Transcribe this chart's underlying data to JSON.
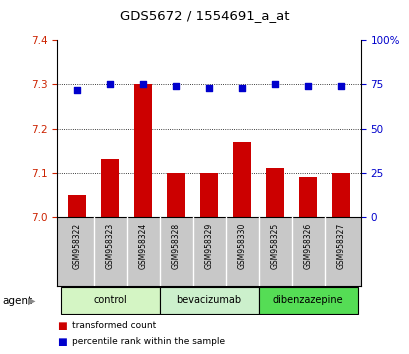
{
  "title": "GDS5672 / 1554691_a_at",
  "samples": [
    "GSM958322",
    "GSM958323",
    "GSM958324",
    "GSM958328",
    "GSM958329",
    "GSM958330",
    "GSM958325",
    "GSM958326",
    "GSM958327"
  ],
  "transformed_count": [
    7.05,
    7.13,
    7.3,
    7.1,
    7.1,
    7.17,
    7.11,
    7.09,
    7.1
  ],
  "percentile_rank": [
    72,
    75,
    75,
    74,
    73,
    73,
    75,
    74,
    74
  ],
  "ylim_left": [
    7.0,
    7.4
  ],
  "ylim_right": [
    0,
    100
  ],
  "yticks_left": [
    7.0,
    7.1,
    7.2,
    7.3,
    7.4
  ],
  "yticks_right": [
    0,
    25,
    50,
    75,
    100
  ],
  "groups": [
    {
      "label": "control",
      "indices": [
        0,
        1,
        2
      ],
      "color": "#d4f5c4"
    },
    {
      "label": "bevacizumab",
      "indices": [
        3,
        4,
        5
      ],
      "color": "#ccf0cc"
    },
    {
      "label": "dibenzazepine",
      "indices": [
        6,
        7,
        8
      ],
      "color": "#55dd55"
    }
  ],
  "bar_color": "#cc0000",
  "dot_color": "#0000cc",
  "bar_width": 0.55,
  "agent_label": "agent",
  "legend_bar_label": "transformed count",
  "legend_dot_label": "percentile rank within the sample",
  "tick_color_left": "#cc2200",
  "tick_color_right": "#0000cc",
  "sample_bg_color": "#c8c8c8",
  "grid_dotted": [
    7.1,
    7.2,
    7.3
  ]
}
